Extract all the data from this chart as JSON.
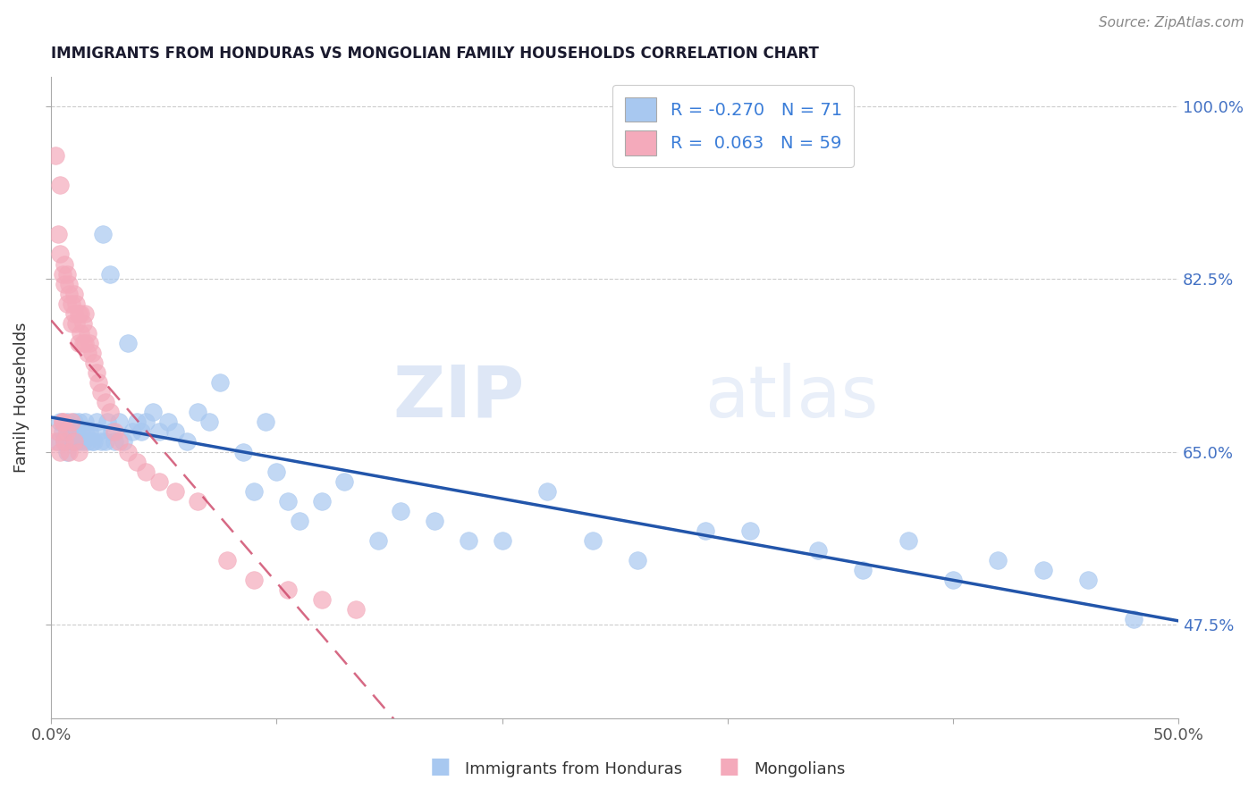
{
  "title": "IMMIGRANTS FROM HONDURAS VS MONGOLIAN FAMILY HOUSEHOLDS CORRELATION CHART",
  "source": "Source: ZipAtlas.com",
  "ylabel": "Family Households",
  "ytick_labels": [
    "100.0%",
    "82.5%",
    "65.0%",
    "47.5%"
  ],
  "ytick_values": [
    1.0,
    0.825,
    0.65,
    0.475
  ],
  "xtick_labels": [
    "0.0%",
    "",
    "",
    "",
    "",
    "50.0%"
  ],
  "xtick_values": [
    0.0,
    0.1,
    0.2,
    0.3,
    0.4,
    0.5
  ],
  "legend_label_blue": "Immigrants from Honduras",
  "legend_label_pink": "Mongolians",
  "R_blue": -0.27,
  "N_blue": 71,
  "R_pink": 0.063,
  "N_pink": 59,
  "blue_color": "#A8C8F0",
  "pink_color": "#F4AABB",
  "blue_line_color": "#2255AA",
  "pink_line_color": "#CC4466",
  "watermark_zip": "ZIP",
  "watermark_atlas": "atlas",
  "xlim": [
    0.0,
    0.5
  ],
  "ylim": [
    0.38,
    1.03
  ],
  "blue_dots_x": [
    0.003,
    0.004,
    0.005,
    0.006,
    0.007,
    0.007,
    0.008,
    0.009,
    0.01,
    0.01,
    0.011,
    0.012,
    0.012,
    0.013,
    0.014,
    0.015,
    0.015,
    0.016,
    0.017,
    0.018,
    0.019,
    0.02,
    0.021,
    0.022,
    0.023,
    0.024,
    0.025,
    0.026,
    0.027,
    0.028,
    0.03,
    0.032,
    0.034,
    0.036,
    0.038,
    0.04,
    0.042,
    0.045,
    0.048,
    0.052,
    0.055,
    0.06,
    0.065,
    0.07,
    0.075,
    0.085,
    0.09,
    0.095,
    0.1,
    0.105,
    0.11,
    0.12,
    0.13,
    0.145,
    0.155,
    0.17,
    0.185,
    0.2,
    0.22,
    0.24,
    0.26,
    0.29,
    0.31,
    0.34,
    0.36,
    0.38,
    0.4,
    0.42,
    0.44,
    0.46,
    0.48
  ],
  "blue_dots_y": [
    0.66,
    0.68,
    0.67,
    0.66,
    0.68,
    0.65,
    0.67,
    0.66,
    0.68,
    0.66,
    0.67,
    0.66,
    0.68,
    0.67,
    0.66,
    0.67,
    0.68,
    0.66,
    0.67,
    0.66,
    0.66,
    0.68,
    0.67,
    0.66,
    0.87,
    0.66,
    0.68,
    0.83,
    0.67,
    0.66,
    0.68,
    0.66,
    0.76,
    0.67,
    0.68,
    0.67,
    0.68,
    0.69,
    0.67,
    0.68,
    0.67,
    0.66,
    0.69,
    0.68,
    0.72,
    0.65,
    0.61,
    0.68,
    0.63,
    0.6,
    0.58,
    0.6,
    0.62,
    0.56,
    0.59,
    0.58,
    0.56,
    0.56,
    0.61,
    0.56,
    0.54,
    0.57,
    0.57,
    0.55,
    0.53,
    0.56,
    0.52,
    0.54,
    0.53,
    0.52,
    0.48
  ],
  "pink_dots_x": [
    0.002,
    0.003,
    0.004,
    0.004,
    0.005,
    0.005,
    0.006,
    0.006,
    0.007,
    0.007,
    0.008,
    0.008,
    0.009,
    0.009,
    0.01,
    0.01,
    0.011,
    0.011,
    0.012,
    0.012,
    0.013,
    0.013,
    0.014,
    0.014,
    0.015,
    0.015,
    0.016,
    0.016,
    0.017,
    0.018,
    0.019,
    0.02,
    0.021,
    0.022,
    0.024,
    0.026,
    0.028,
    0.03,
    0.034,
    0.038,
    0.042,
    0.048,
    0.055,
    0.065,
    0.078,
    0.09,
    0.105,
    0.12,
    0.135,
    0.002,
    0.003,
    0.004,
    0.005,
    0.006,
    0.007,
    0.008,
    0.009,
    0.01,
    0.012
  ],
  "pink_dots_y": [
    0.95,
    0.87,
    0.85,
    0.92,
    0.83,
    0.68,
    0.82,
    0.84,
    0.8,
    0.83,
    0.81,
    0.82,
    0.8,
    0.78,
    0.79,
    0.81,
    0.78,
    0.8,
    0.76,
    0.79,
    0.77,
    0.79,
    0.76,
    0.78,
    0.76,
    0.79,
    0.75,
    0.77,
    0.76,
    0.75,
    0.74,
    0.73,
    0.72,
    0.71,
    0.7,
    0.69,
    0.67,
    0.66,
    0.65,
    0.64,
    0.63,
    0.62,
    0.61,
    0.6,
    0.54,
    0.52,
    0.51,
    0.5,
    0.49,
    0.66,
    0.67,
    0.65,
    0.68,
    0.66,
    0.67,
    0.65,
    0.68,
    0.66,
    0.65
  ]
}
